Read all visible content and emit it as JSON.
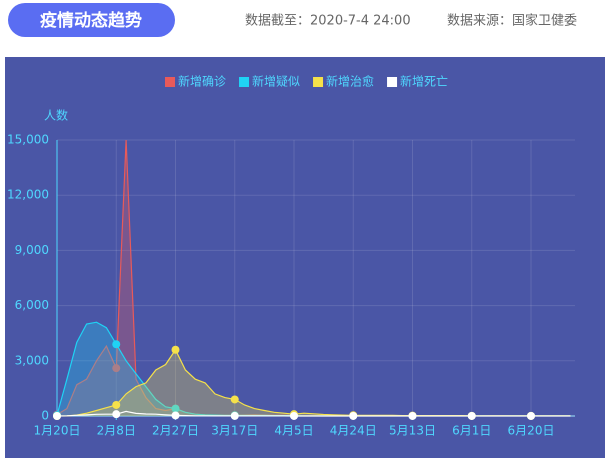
{
  "header": {
    "title": "疫情动态趋势",
    "date_label": "数据截至：2020-7-4 24:00",
    "source_label": "数据来源：国家卫健委"
  },
  "chart_data": {
    "type": "line",
    "y_label": "人数",
    "categories": [
      "1月20日",
      null,
      null,
      null,
      null,
      null,
      "2月8日",
      null,
      null,
      null,
      null,
      null,
      "2月27日",
      null,
      null,
      null,
      null,
      null,
      "3月17日",
      null,
      null,
      null,
      null,
      null,
      "4月5日",
      null,
      null,
      null,
      null,
      null,
      "4月24日",
      null,
      null,
      null,
      null,
      null,
      "5月13日",
      null,
      null,
      null,
      null,
      null,
      "6月1日",
      null,
      null,
      null,
      null,
      null,
      "6月20日",
      null,
      null,
      null,
      null
    ],
    "series": [
      {
        "name": "新增确诊",
        "color": "#e85a5a",
        "values": [
          77,
          400,
          1700,
          2000,
          3000,
          3800,
          2600,
          15000,
          2000,
          1000,
          400,
          300,
          400,
          200,
          100,
          60,
          40,
          30,
          40,
          50,
          60,
          50,
          40,
          30,
          20,
          20,
          20,
          10,
          10,
          10,
          10,
          10,
          10,
          10,
          5,
          5,
          5,
          5,
          5,
          5,
          5,
          5,
          5,
          10,
          20,
          20,
          10,
          5,
          5,
          5,
          5,
          5,
          5
        ]
      },
      {
        "name": "新增疑似",
        "color": "#1fd3f5",
        "values": [
          50,
          2000,
          4000,
          5000,
          5100,
          4800,
          3900,
          3000,
          2300,
          1600,
          900,
          500,
          400,
          200,
          100,
          60,
          50,
          40,
          40,
          30,
          30,
          30,
          20,
          20,
          20,
          10,
          10,
          10,
          10,
          10,
          10,
          10,
          10,
          5,
          5,
          5,
          5,
          5,
          5,
          5,
          5,
          5,
          5,
          5,
          5,
          5,
          5,
          5,
          5,
          5,
          5,
          5,
          5
        ]
      },
      {
        "name": "新增治愈",
        "color": "#f5e14a",
        "values": [
          0,
          5,
          50,
          150,
          300,
          450,
          600,
          1200,
          1600,
          1800,
          2500,
          2800,
          3600,
          2500,
          2000,
          1800,
          1200,
          1000,
          900,
          600,
          400,
          300,
          200,
          150,
          100,
          150,
          120,
          80,
          60,
          50,
          40,
          40,
          30,
          30,
          30,
          20,
          20,
          20,
          20,
          20,
          20,
          20,
          10,
          10,
          10,
          10,
          10,
          10,
          5,
          5,
          5,
          5,
          5
        ]
      },
      {
        "name": "新增死亡",
        "color": "#ffffff",
        "values": [
          0,
          10,
          40,
          60,
          90,
          100,
          100,
          250,
          140,
          110,
          100,
          60,
          30,
          20,
          10,
          10,
          5,
          5,
          5,
          5,
          5,
          5,
          5,
          5,
          2,
          2,
          2,
          2,
          2,
          2,
          2,
          1,
          1,
          1,
          1,
          1,
          1,
          1,
          1,
          1,
          1,
          1,
          1,
          1,
          1,
          1,
          1,
          1,
          1,
          1,
          0,
          0,
          0
        ]
      }
    ],
    "ylim": [
      0,
      15000
    ],
    "yticks": [
      0,
      {
        "value": 3000,
        "label": "3,000"
      },
      {
        "value": 6000,
        "label": "6,000"
      },
      {
        "value": 9000,
        "label": "9,000"
      },
      {
        "value": 12000,
        "label": "12,000"
      },
      {
        "value": 15000,
        "label": "15,000"
      }
    ],
    "grid": true,
    "legend": "top"
  }
}
